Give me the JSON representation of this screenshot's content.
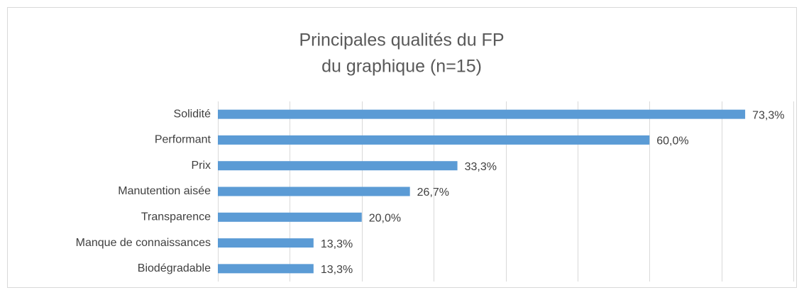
{
  "chart_data": {
    "type": "bar",
    "orientation": "horizontal",
    "title": [
      "Principales qualités du FP",
      "du graphique (n=15)"
    ],
    "categories": [
      "Solidité",
      "Performant",
      "Prix",
      "Manutention aisée",
      "Transparence",
      "Manque de connaissances",
      "Biodégradable"
    ],
    "values": [
      73.3,
      60.0,
      33.3,
      26.7,
      20.0,
      13.3,
      13.3
    ],
    "value_labels": [
      "73,3%",
      "60,0%",
      "33,3%",
      "26,7%",
      "20,0%",
      "13,3%",
      "13,3%"
    ],
    "color": "#5b9bd5",
    "xlim": [
      0,
      80
    ],
    "xticks": [
      0,
      10,
      20,
      30,
      40,
      50,
      60,
      70,
      80
    ],
    "grid": true
  }
}
